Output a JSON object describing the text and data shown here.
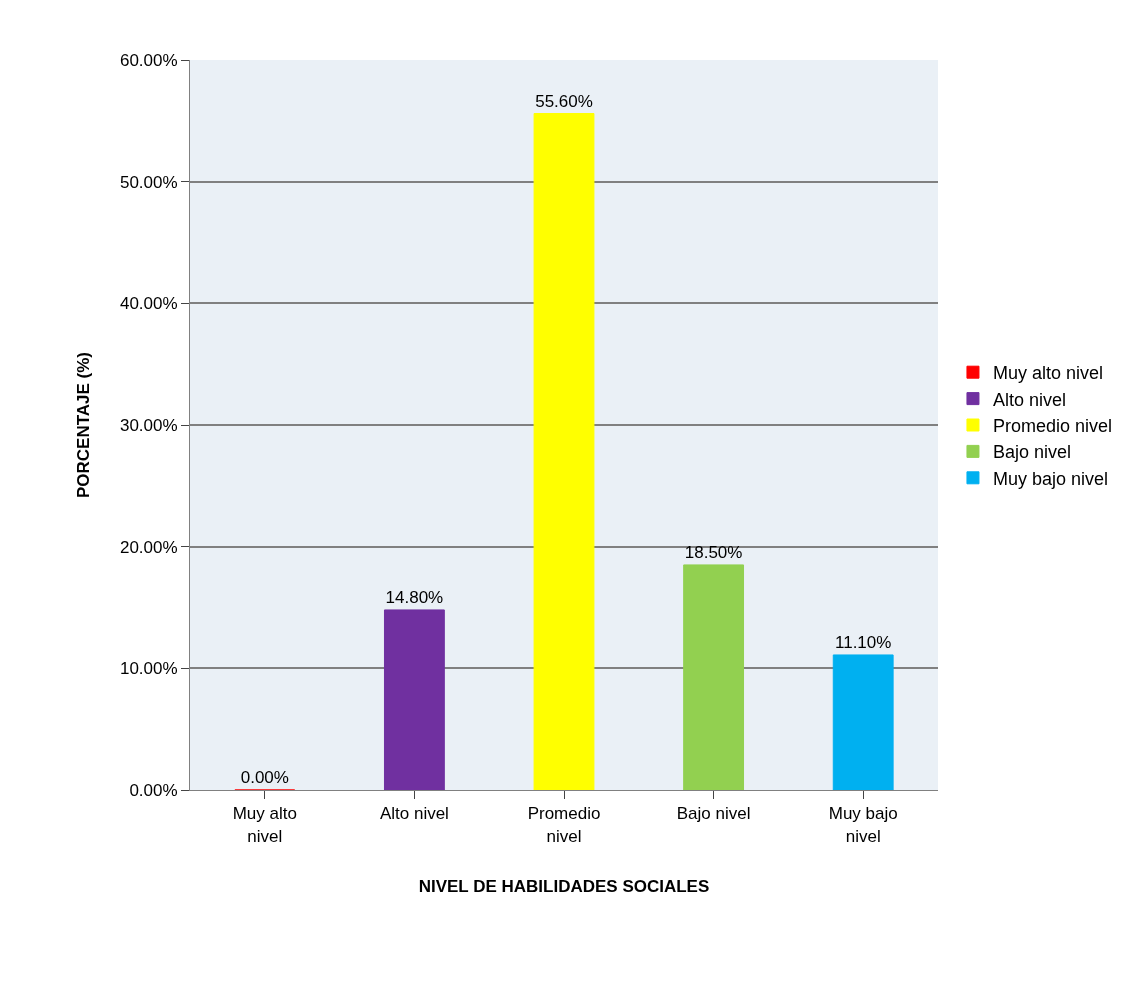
{
  "chart_data": {
    "type": "bar",
    "xlabel": "NIVEL DE HABILIDADES SOCIALES",
    "ylabel": "PORCENTAJE (%)",
    "categories": [
      "Muy alto nivel",
      "Alto nivel",
      "Promedio nivel",
      "Bajo nivel",
      "Muy bajo nivel"
    ],
    "series": [
      {
        "name": "Muy alto nivel",
        "color": "#ff0000",
        "values": [
          0,
          null,
          null,
          null,
          null
        ],
        "value_labels": [
          "0.00%",
          null,
          null,
          null,
          null
        ]
      },
      {
        "name": "Alto nivel",
        "color": "#7030a0",
        "values": [
          null,
          14.8,
          null,
          null,
          null
        ],
        "value_labels": [
          null,
          "14.80%",
          null,
          null,
          null
        ]
      },
      {
        "name": "Promedio nivel",
        "color": "#ffff00",
        "values": [
          null,
          null,
          55.6,
          null,
          null
        ],
        "value_labels": [
          null,
          null,
          "55.60%",
          null,
          null
        ]
      },
      {
        "name": "Bajo nivel",
        "color": "#92d050",
        "values": [
          null,
          null,
          null,
          18.5,
          null
        ],
        "value_labels": [
          null,
          null,
          null,
          "18.50%",
          null
        ]
      },
      {
        "name": "Muy bajo nivel",
        "color": "#00b0f0",
        "values": [
          null,
          null,
          null,
          null,
          11.1
        ],
        "value_labels": [
          null,
          null,
          null,
          null,
          "11.10%"
        ]
      }
    ],
    "stacked": true,
    "ylim": [
      0,
      60
    ],
    "yticks": [
      {
        "value": 0,
        "label": "0.00%"
      },
      {
        "value": 10,
        "label": "10.00%"
      },
      {
        "value": 20,
        "label": "20.00%"
      },
      {
        "value": 30,
        "label": "30.00%"
      },
      {
        "value": 40,
        "label": "40.00%"
      },
      {
        "value": 50,
        "label": "50.00%"
      },
      {
        "value": 60,
        "label": "60.00%"
      }
    ],
    "grid": "y",
    "legend": "right"
  }
}
